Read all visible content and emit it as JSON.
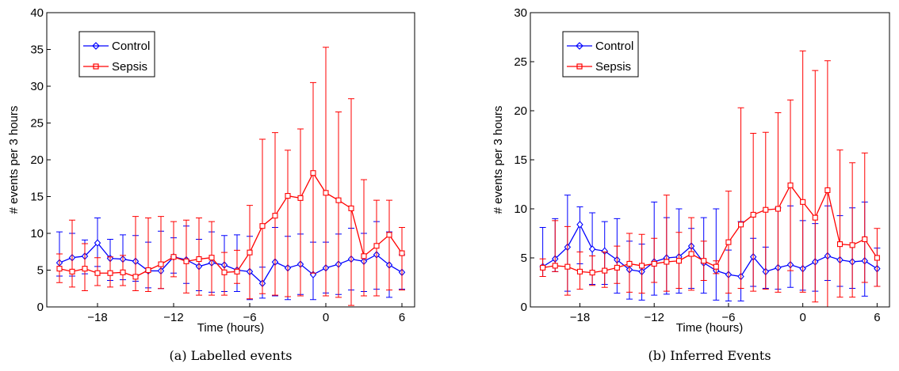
{
  "chart_data": [
    {
      "type": "line",
      "caption": "(a) Labelled events",
      "xlabel": "Time (hours)",
      "ylabel": "# events per 3 hours",
      "xlim": [
        -22,
        7
      ],
      "ylim": [
        0,
        40
      ],
      "xticks": [
        -18,
        -12,
        -6,
        0,
        6
      ],
      "xtick_labels": [
        "−18",
        "−12",
        "−6",
        "0",
        "6"
      ],
      "yticks": [
        0,
        5,
        10,
        15,
        20,
        25,
        30,
        35,
        40
      ],
      "grid": false,
      "legend_position": "top-left",
      "x": [
        -21,
        -20,
        -19,
        -18,
        -17,
        -16,
        -15,
        -14,
        -13,
        -12,
        -11,
        -10,
        -9,
        -8,
        -7,
        -6,
        -5,
        -4,
        -3,
        -2,
        -1,
        0,
        1,
        2,
        3,
        4,
        5,
        6
      ],
      "series": [
        {
          "name": "Control",
          "color": "#0000ff",
          "marker": "diamond",
          "values": [
            6.0,
            6.7,
            6.9,
            8.7,
            6.6,
            6.5,
            6.2,
            4.9,
            4.9,
            6.8,
            6.4,
            5.5,
            6.0,
            5.7,
            5.0,
            4.8,
            3.2,
            6.1,
            5.3,
            5.8,
            4.4,
            5.3,
            5.8,
            6.5,
            6.2,
            7.1,
            5.7,
            4.7
          ],
          "err_low": [
            4.2,
            4.2,
            4.5,
            5.5,
            3.6,
            3.7,
            3.5,
            2.6,
            2.5,
            4.6,
            3.2,
            2.2,
            2.0,
            2.1,
            2.1,
            1.0,
            1.2,
            1.5,
            1.0,
            1.7,
            1.0,
            1.9,
            1.7,
            2.3,
            2.1,
            2.4,
            1.3,
            2.4
          ],
          "err_high": [
            10.2,
            10.0,
            9.1,
            12.1,
            9.2,
            9.8,
            9.7,
            8.8,
            10.3,
            9.4,
            11.0,
            9.2,
            10.2,
            9.7,
            9.8,
            9.6,
            5.4,
            10.8,
            9.6,
            9.9,
            8.8,
            8.8,
            9.9,
            10.7,
            10.0,
            11.6,
            10.2,
            7.1
          ]
        },
        {
          "name": "Sepsis",
          "color": "#ff0000",
          "marker": "square",
          "values": [
            5.2,
            4.8,
            5.2,
            4.6,
            4.6,
            4.7,
            4.1,
            5.0,
            5.8,
            6.8,
            6.2,
            6.5,
            6.7,
            4.7,
            4.8,
            7.4,
            11.0,
            12.4,
            15.1,
            14.8,
            18.2,
            15.5,
            14.5,
            13.4,
            6.9,
            8.3,
            9.8,
            7.3
          ],
          "err_low": [
            3.3,
            2.7,
            2.2,
            2.9,
            2.7,
            2.9,
            2.2,
            2.1,
            2.5,
            4.1,
            1.9,
            1.6,
            1.6,
            1.6,
            3.2,
            1.1,
            1.8,
            1.6,
            1.4,
            1.5,
            4.6,
            1.5,
            1.3,
            0.2,
            1.5,
            1.5,
            2.3,
            2.3
          ],
          "err_high": [
            7.2,
            11.8,
            8.6,
            6.7,
            6.8,
            7.0,
            12.3,
            12.1,
            12.3,
            11.6,
            11.8,
            12.1,
            11.6,
            7.4,
            7.7,
            13.8,
            22.8,
            23.7,
            21.3,
            24.2,
            30.5,
            35.3,
            26.5,
            28.3,
            17.3,
            14.5,
            14.5,
            10.8
          ]
        }
      ]
    },
    {
      "type": "line",
      "caption": "(b) Inferred Events",
      "xlabel": "Time (hours)",
      "ylabel": "# events per 3 hours",
      "xlim": [
        -22,
        7
      ],
      "ylim": [
        0,
        30
      ],
      "xticks": [
        -18,
        -12,
        -6,
        0,
        6
      ],
      "xtick_labels": [
        "−18",
        "−12",
        "−6",
        "0",
        "6"
      ],
      "yticks": [
        0,
        5,
        10,
        15,
        20,
        25,
        30
      ],
      "grid": false,
      "legend_position": "top-left",
      "x": [
        -21,
        -20,
        -19,
        -18,
        -17,
        -16,
        -15,
        -14,
        -13,
        -12,
        -11,
        -10,
        -9,
        -8,
        -7,
        -6,
        -5,
        -4,
        -3,
        -2,
        -1,
        0,
        1,
        2,
        3,
        4,
        5,
        6
      ],
      "series": [
        {
          "name": "Control",
          "color": "#0000ff",
          "marker": "diamond",
          "values": [
            4.1,
            4.9,
            6.1,
            8.4,
            5.9,
            5.7,
            4.8,
            3.8,
            3.6,
            4.6,
            5.0,
            5.1,
            6.2,
            4.5,
            3.7,
            3.3,
            3.1,
            5.1,
            3.6,
            4.0,
            4.3,
            3.9,
            4.6,
            5.2,
            4.8,
            4.6,
            4.7,
            3.9
          ],
          "err_low": [
            3.1,
            3.6,
            1.6,
            4.4,
            2.3,
            2.3,
            1.4,
            0.8,
            0.7,
            1.2,
            1.3,
            1.4,
            1.9,
            1.4,
            0.7,
            0.6,
            0.6,
            2.1,
            1.9,
            1.8,
            2.0,
            1.7,
            1.6,
            2.7,
            2.1,
            1.9,
            1.1,
            2.1
          ],
          "err_high": [
            8.1,
            9.0,
            11.4,
            10.2,
            9.6,
            8.7,
            9.0,
            6.7,
            6.4,
            10.7,
            9.1,
            10.0,
            8.0,
            9.1,
            10.0,
            5.8,
            8.7,
            7.0,
            6.1,
            10.1,
            10.3,
            8.8,
            8.5,
            10.3,
            9.3,
            10.1,
            10.7,
            6.0
          ]
        },
        {
          "name": "Sepsis",
          "color": "#ff0000",
          "marker": "square",
          "values": [
            4.0,
            4.2,
            4.1,
            3.6,
            3.5,
            3.7,
            4.0,
            4.4,
            4.2,
            4.4,
            4.6,
            4.7,
            5.4,
            4.7,
            4.1,
            6.6,
            8.4,
            9.4,
            9.9,
            10.0,
            12.4,
            10.7,
            9.1,
            11.9,
            6.4,
            6.3,
            6.9,
            5.0
          ],
          "err_low": [
            3.1,
            3.6,
            1.2,
            1.8,
            2.2,
            2.0,
            2.4,
            1.5,
            1.4,
            2.5,
            1.6,
            1.9,
            1.7,
            2.7,
            3.4,
            1.4,
            1.9,
            1.6,
            1.8,
            1.5,
            3.7,
            1.5,
            0.5,
            0.0,
            1.0,
            1.0,
            2.5,
            2.1
          ],
          "err_high": [
            4.9,
            8.8,
            8.2,
            5.6,
            5.2,
            5.6,
            6.2,
            7.5,
            7.4,
            7.0,
            11.4,
            7.6,
            9.1,
            6.7,
            4.7,
            11.8,
            20.3,
            17.7,
            17.8,
            19.8,
            21.1,
            26.1,
            24.1,
            25.1,
            16.0,
            14.7,
            15.7,
            8.0
          ]
        }
      ]
    }
  ]
}
